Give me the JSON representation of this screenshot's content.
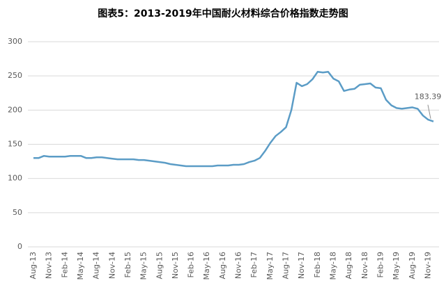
{
  "chart_data": {
    "type": "line",
    "title": "图表5：2013-2019年中国耐火材料综合价格指数走势图",
    "categories": [
      "Aug-13",
      null,
      null,
      "Nov-13",
      null,
      null,
      "Feb-14",
      null,
      null,
      "May-14",
      null,
      null,
      "Aug-14",
      null,
      null,
      "Nov-14",
      null,
      null,
      "Feb-15",
      null,
      null,
      "May-15",
      null,
      null,
      "Aug-15",
      null,
      null,
      "Nov-15",
      null,
      null,
      "Feb-16",
      null,
      null,
      "May-16",
      null,
      null,
      "Aug-16",
      null,
      null,
      "Nov-16",
      null,
      null,
      "Feb-17",
      null,
      null,
      "May-17",
      null,
      null,
      "Aug-17",
      null,
      null,
      "Nov-17",
      null,
      null,
      "Feb-18",
      null,
      null,
      "May-18",
      null,
      null,
      "Aug-18",
      null,
      null,
      "Nov-18",
      null,
      null,
      "Feb-19",
      null,
      null,
      "May-19",
      null,
      null,
      "Aug-19",
      null,
      null,
      "Nov-19",
      null
    ],
    "values": [
      130,
      130,
      133,
      132,
      132,
      132,
      132,
      133,
      133,
      133,
      130,
      130,
      131,
      131,
      130,
      129,
      128,
      128,
      128,
      128,
      127,
      127,
      126,
      125,
      124,
      123,
      121,
      120,
      119,
      118,
      118,
      118,
      118,
      118,
      118,
      119,
      119,
      119,
      120,
      120,
      121,
      124,
      126,
      130,
      140,
      152,
      162,
      168,
      175,
      200,
      240,
      235,
      238,
      245,
      256,
      255,
      256,
      246,
      242,
      228,
      230,
      231,
      237,
      238,
      239,
      233,
      232,
      215,
      207,
      203,
      202,
      203,
      204,
      202,
      192,
      186,
      183.39
    ],
    "color": "#5b9cc6",
    "ylim": [
      0,
      300
    ],
    "yticks": [
      0,
      50,
      100,
      150,
      200,
      250,
      300
    ],
    "grid": true
  }
}
